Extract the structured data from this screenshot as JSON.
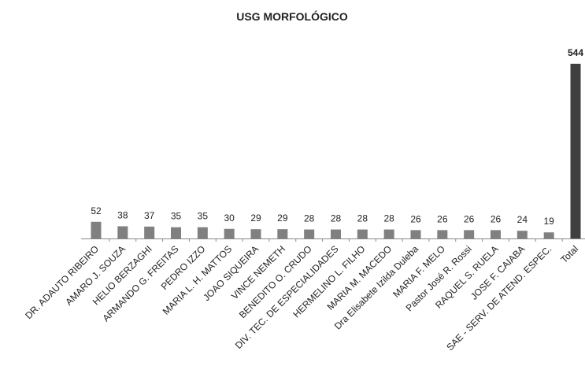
{
  "chart_data": {
    "type": "bar",
    "title": "USG MORFOLÓGICO",
    "categories": [
      "DR. ADAUTO RIBEIRO",
      "AMARO J. SOUZA",
      "HELIO BERZAGHI",
      "ARMANDO G. FREITAS",
      "PEDRO IZZO",
      "MARIA L. H. MATTOS",
      "JOAO SIQUEIRA",
      "VINCE NEMETH",
      "BENEDITO O. CRUDO",
      "DIV. TEC. DE ESPECIALIDADES",
      "HERMELINO L. FILHO",
      "MARIA M. MACEDO",
      "Dra Elisabete Izilda Duleba",
      "MARIA F. MELO",
      "Pastor José R. Rossi",
      "RAQUEL S. RUELA",
      "JOSE F. CAIABA",
      "SAE - SERV. DE ATEND. ESPEC.",
      "Total"
    ],
    "values": [
      52,
      38,
      37,
      35,
      35,
      30,
      29,
      29,
      28,
      28,
      28,
      28,
      26,
      26,
      26,
      26,
      24,
      19,
      544
    ],
    "colors": [
      "#808080",
      "#808080",
      "#808080",
      "#808080",
      "#808080",
      "#808080",
      "#808080",
      "#808080",
      "#808080",
      "#808080",
      "#808080",
      "#808080",
      "#808080",
      "#808080",
      "#808080",
      "#808080",
      "#808080",
      "#808080",
      "#404040"
    ]
  }
}
